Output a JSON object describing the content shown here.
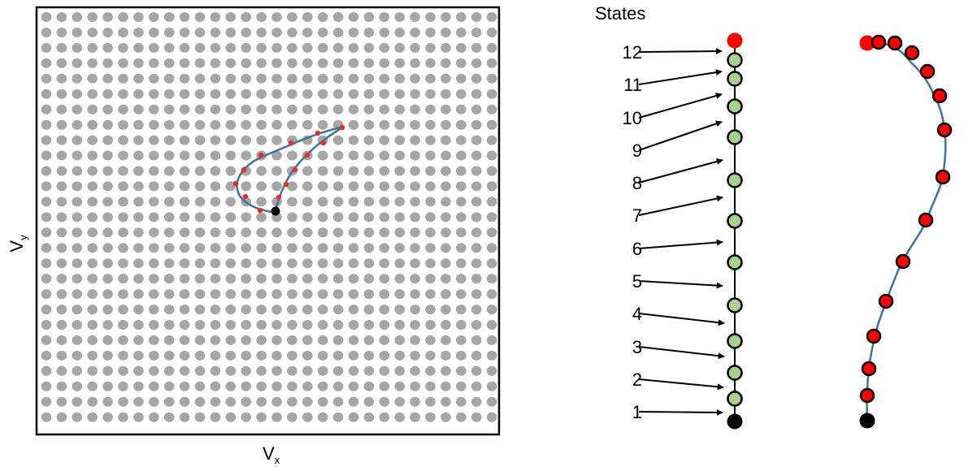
{
  "left_panel": {
    "x_axis_label": "V",
    "x_axis_sub": "x",
    "y_axis_label": "V",
    "y_axis_sub": "y",
    "grid": {
      "columns": 30,
      "rows": 27
    },
    "colors": {
      "grid_dot": "#a6a6a6",
      "frame": "#000000",
      "path": "#41719c",
      "state_marker": "#e03030",
      "start_marker": "#000000"
    }
  },
  "middle_panel": {
    "title": "States",
    "state_labels": [
      "12",
      "11",
      "10",
      "9",
      "8",
      "7",
      "6",
      "5",
      "4",
      "3",
      "2",
      "1"
    ],
    "colors": {
      "state_fill": "#a9d18e",
      "final_fill": "#ff0000",
      "start_fill": "#000000",
      "line": "#000000"
    }
  },
  "right_panel": {
    "colors": {
      "curve": "#41719c",
      "state_fill": "#ff0000",
      "start_fill": "#000000"
    }
  }
}
